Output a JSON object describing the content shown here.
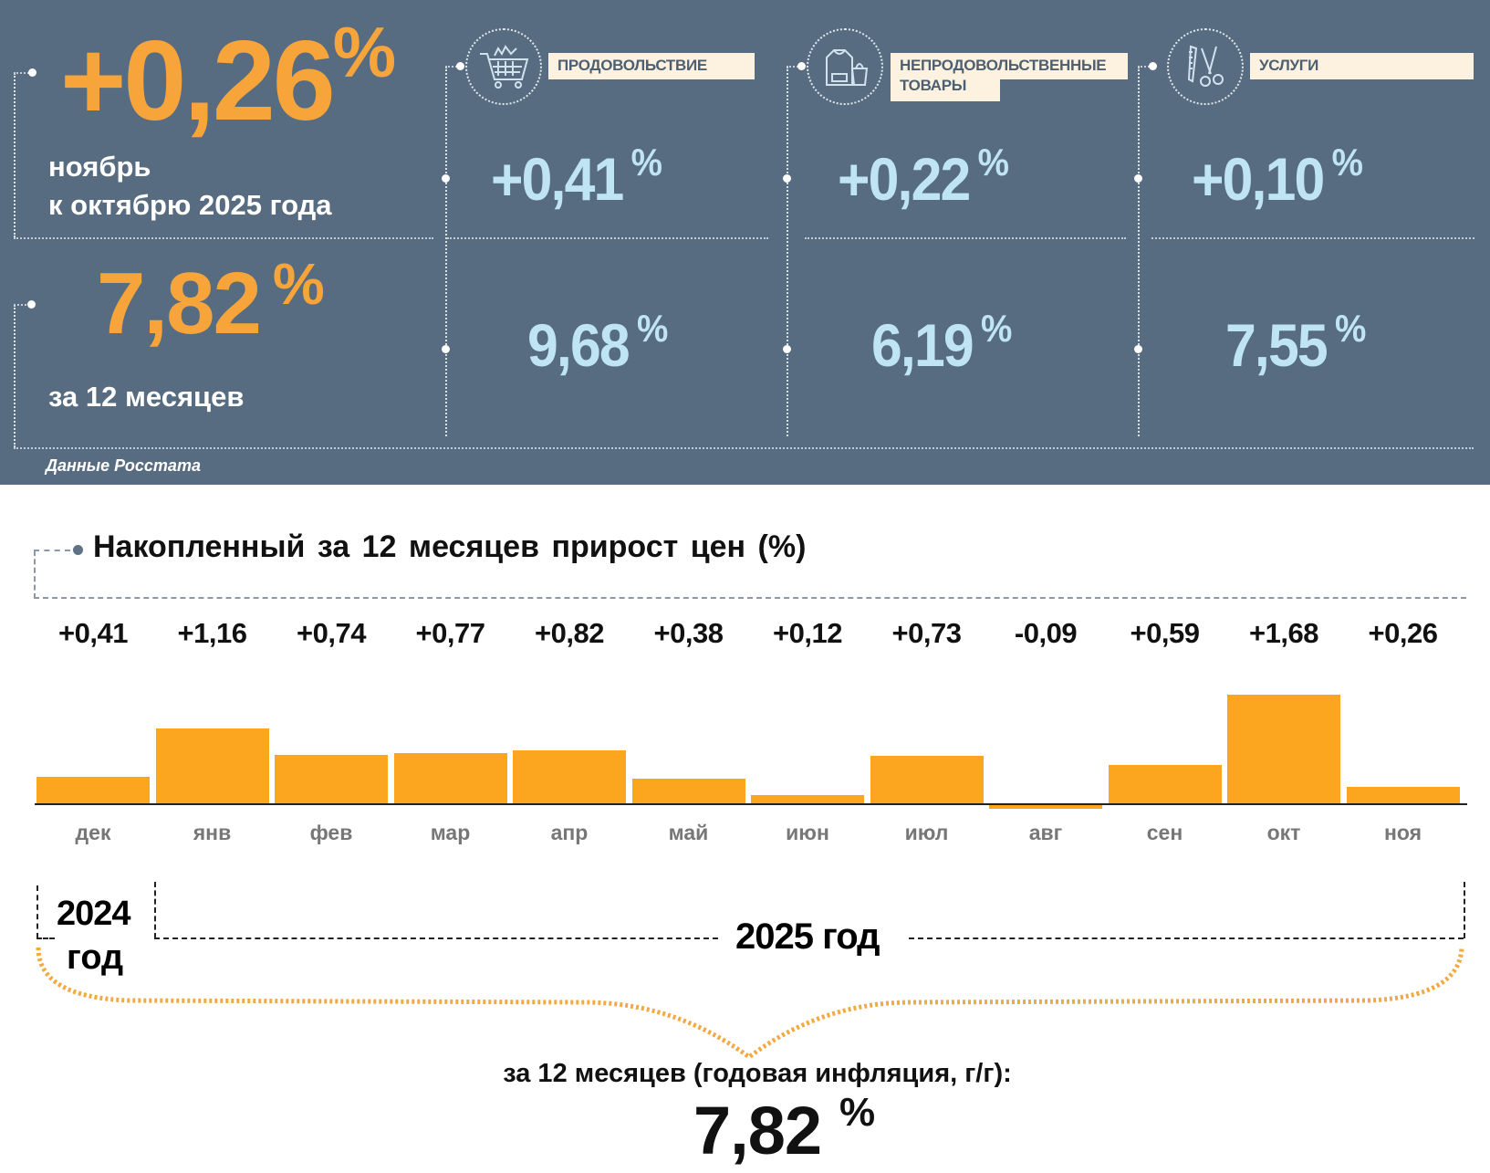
{
  "summary": {
    "monthly_value": "+0,26",
    "percent_sign": "%",
    "monthly_line1": "ноябрь",
    "monthly_line2": "к октябрю 2025 года",
    "annual_value": "7,82",
    "annual_label": "за 12 месяцев",
    "source": "Данные Росстата"
  },
  "categories": [
    {
      "label": "ПРОДОВОЛЬСТВИЕ",
      "icon": "shopping-cart-icon",
      "monthly": "+0,41",
      "annual": "9,68"
    },
    {
      "label": "НЕПРОДОВОЛЬСТВЕННЫЕ",
      "label2": "ТОВАРЫ",
      "icon": "clothing-bag-icon",
      "monthly": "+0,22",
      "annual": "6,19"
    },
    {
      "label": "УСЛУГИ",
      "icon": "comb-scissors-icon",
      "monthly": "+0,10",
      "annual": "7,55"
    }
  ],
  "colors": {
    "panel": "#576c81",
    "orange": "#f7a53a",
    "bar": "#fca61f",
    "light_blue": "#bfe4f4",
    "label_bg": "#fdf2e0"
  },
  "chart_data": {
    "type": "bar",
    "title": "Накопленный за 12 месяцев прирост цен (%)",
    "categories": [
      "дек",
      "янв",
      "фев",
      "мар",
      "апр",
      "май",
      "июн",
      "июл",
      "авг",
      "сен",
      "окт",
      "ноя"
    ],
    "values": [
      0.41,
      1.16,
      0.74,
      0.77,
      0.82,
      0.38,
      0.12,
      0.73,
      -0.09,
      0.59,
      1.68,
      0.26
    ],
    "value_labels": [
      "+0,41",
      "+1,16",
      "+0,74",
      "+0,77",
      "+0,82",
      "+0,38",
      "+0,12",
      "+0,73",
      "-0,09",
      "+0,59",
      "+1,68",
      "+0,26"
    ],
    "xlabel": "",
    "ylabel": "",
    "grid": false
  },
  "periods": {
    "year2024_line1": "2024",
    "year2024_line2": "год",
    "year2025": "2025 год"
  },
  "total": {
    "label": "за 12 месяцев (годовая инфляция, г/г):",
    "value": "7,82",
    "percent_sign": "%"
  }
}
